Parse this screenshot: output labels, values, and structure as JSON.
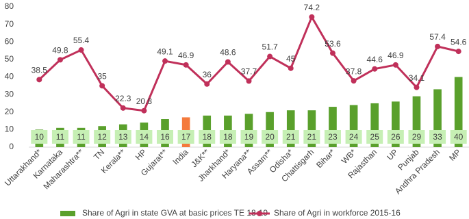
{
  "chart_data": {
    "type": "bar-line",
    "categories": [
      "Uttarakhand*",
      "Karnataka",
      "Maharashtra**",
      "TN",
      "Kerala**",
      "HP",
      "Gujarat**",
      "India",
      "J&K**",
      "Jharkhand*",
      "Haryana**",
      "Assam**",
      "Odisha*",
      "Chattisgarh",
      "Bihar*",
      "WB*",
      "Rajasthan",
      "UP",
      "Punjab",
      "Andhra Pradesh",
      "MP"
    ],
    "series": [
      {
        "name": "Share of Agri in state GVA at basic prices TE 18-19",
        "type": "bar",
        "color": "#5aa02c",
        "colors": [
          "#5aa02c",
          "#5aa02c",
          "#5aa02c",
          "#5aa02c",
          "#5aa02c",
          "#5aa02c",
          "#5aa02c",
          "#f47a3c",
          "#5aa02c",
          "#5aa02c",
          "#5aa02c",
          "#5aa02c",
          "#5aa02c",
          "#5aa02c",
          "#5aa02c",
          "#5aa02c",
          "#5aa02c",
          "#5aa02c",
          "#5aa02c",
          "#5aa02c",
          "#5aa02c"
        ],
        "values": [
          10,
          11,
          11,
          12,
          13,
          14,
          16,
          17,
          18,
          18,
          19,
          20,
          21,
          21,
          23,
          24,
          25,
          26,
          29,
          33,
          40
        ]
      },
      {
        "name": "Share of Agri in workforce 2015-16",
        "type": "line",
        "color": "#c0305a",
        "values": [
          38.5,
          49.8,
          55.4,
          35,
          22.3,
          20.8,
          49.1,
          46.9,
          36,
          48.6,
          37.7,
          51.7,
          45,
          74.2,
          53.6,
          37.8,
          44.6,
          46.9,
          34.1,
          57.4,
          54.6
        ]
      }
    ],
    "ylim": [
      0,
      80
    ],
    "yticks": [
      0,
      10,
      20,
      30,
      40,
      50,
      60,
      70,
      80
    ],
    "grid": false
  }
}
